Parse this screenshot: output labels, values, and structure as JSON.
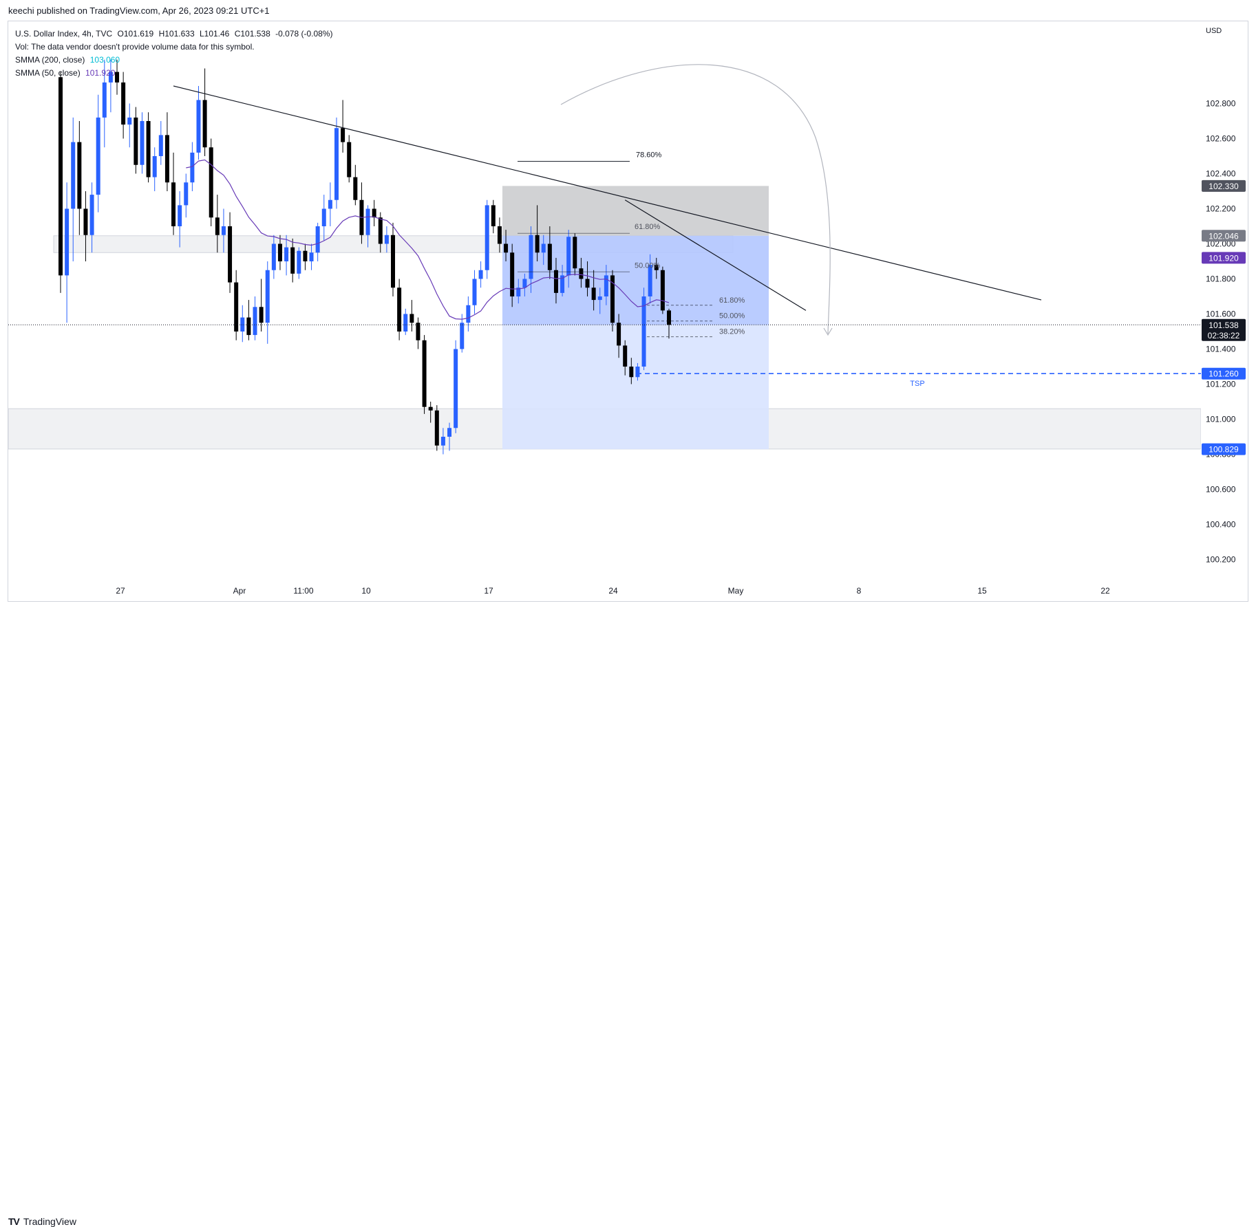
{
  "header": {
    "published_by": "keechi published on TradingView.com, Apr 26, 2023 09:21 UTC+1"
  },
  "legend": {
    "symbol_line": "U.S. Dollar Index, 4h, TVC",
    "ohlc": {
      "open": "O101.619",
      "high": "H101.633",
      "low": "L101.46",
      "close": "C101.538",
      "change": "-0.078 (-0.08%)"
    },
    "volume_note": "Vol: The data vendor doesn't provide volume data for this symbol.",
    "indicators": [
      {
        "label": "SMMA (200, close)",
        "value": "103.060",
        "color": "#00bcd4"
      },
      {
        "label": "SMMA (50, close)",
        "value": "101.920",
        "color": "#673ab7"
      }
    ]
  },
  "footer": {
    "brand": "TradingView"
  },
  "colors": {
    "up": "#2962ff",
    "down": "#000000",
    "smma50": "#673ab7",
    "fib_zone_fill": "#b2c6ff",
    "fib_zone_light": "#d8e3ff",
    "grey_zone": "#c9cacd",
    "support_band": "#f0f1f3",
    "tsp_line": "#2962ff"
  },
  "chart_data": {
    "type": "candlestick",
    "timeframe": "4h",
    "y_axis": {
      "unit": "USD",
      "ticks": [
        "102.800",
        "102.600",
        "102.400",
        "102.200",
        "102.000",
        "101.800",
        "101.600",
        "101.400",
        "101.200",
        "101.000",
        "100.800",
        "100.600",
        "100.400",
        "100.200"
      ],
      "range": [
        100.13,
        102.9
      ]
    },
    "x_axis": {
      "ticks": [
        "27",
        "Apr",
        "11:00",
        "10",
        "17",
        "24",
        "May",
        "8",
        "15",
        "22"
      ]
    },
    "price_labels": [
      {
        "value": 102.33,
        "text": "102.330",
        "style": "dark-grey"
      },
      {
        "value": 102.046,
        "text": "102.046",
        "style": "grey"
      },
      {
        "value": 101.92,
        "text": "101.920",
        "style": "purple"
      },
      {
        "value": 101.538,
        "text": "101.538",
        "sub": "02:38:22",
        "style": "black"
      },
      {
        "value": 101.26,
        "text": "101.260",
        "style": "blue"
      },
      {
        "value": 100.829,
        "text": "100.829",
        "style": "blue"
      }
    ],
    "current_price": 101.538,
    "countdown": "02:38:22",
    "tsp": {
      "value": 101.26,
      "label": "TSP"
    },
    "fib_large": [
      {
        "label": "78.60%",
        "value": 102.47
      },
      {
        "label": "61.80%",
        "value": 102.06
      },
      {
        "label": "50.00%",
        "value": 101.84
      }
    ],
    "fib_small": [
      {
        "label": "61.80%",
        "value": 101.65
      },
      {
        "label": "50.00%",
        "value": 101.56
      },
      {
        "label": "38.20%",
        "value": 101.47
      }
    ],
    "zones": [
      {
        "name": "resistance-box",
        "top": 102.33,
        "bottom": 102.046
      },
      {
        "name": "fib-zone",
        "top": 102.046,
        "bottom": 100.829
      },
      {
        "name": "upper-band",
        "top": 102.046,
        "bottom": 101.95
      },
      {
        "name": "support-band",
        "top": 101.06,
        "bottom": 100.83
      }
    ],
    "trendlines": [
      {
        "name": "long-downtrend",
        "from": {
          "bar": 18,
          "value": 102.9
        },
        "to": {
          "x_label": "8",
          "value": 101.68
        }
      },
      {
        "name": "short-downtrend",
        "from": {
          "bar": 90,
          "value": 102.25
        },
        "to": {
          "x_label": "May",
          "value": 101.62
        }
      }
    ],
    "candles_ohlc": [
      [
        102.95,
        102.98,
        101.72,
        101.82
      ],
      [
        101.82,
        102.35,
        101.55,
        102.2
      ],
      [
        102.2,
        102.72,
        101.9,
        102.58
      ],
      [
        102.58,
        102.7,
        102.05,
        102.2
      ],
      [
        102.2,
        102.3,
        101.9,
        102.05
      ],
      [
        102.05,
        102.35,
        101.95,
        102.28
      ],
      [
        102.28,
        102.85,
        102.18,
        102.72
      ],
      [
        102.72,
        103.05,
        102.55,
        102.92
      ],
      [
        102.92,
        103.05,
        102.75,
        102.98
      ],
      [
        102.98,
        103.05,
        102.85,
        102.92
      ],
      [
        102.92,
        102.98,
        102.6,
        102.68
      ],
      [
        102.68,
        102.8,
        102.55,
        102.72
      ],
      [
        102.72,
        102.78,
        102.4,
        102.45
      ],
      [
        102.45,
        102.75,
        102.4,
        102.7
      ],
      [
        102.7,
        102.75,
        102.35,
        102.38
      ],
      [
        102.38,
        102.55,
        102.3,
        102.5
      ],
      [
        102.5,
        102.7,
        102.45,
        102.62
      ],
      [
        102.62,
        102.75,
        102.3,
        102.35
      ],
      [
        102.35,
        102.52,
        102.05,
        102.1
      ],
      [
        102.1,
        102.3,
        101.98,
        102.22
      ],
      [
        102.22,
        102.4,
        102.15,
        102.35
      ],
      [
        102.35,
        102.58,
        102.3,
        102.52
      ],
      [
        102.52,
        102.9,
        102.48,
        102.82
      ],
      [
        102.82,
        103.0,
        102.5,
        102.55
      ],
      [
        102.55,
        102.6,
        102.1,
        102.15
      ],
      [
        102.15,
        102.28,
        101.95,
        102.05
      ],
      [
        102.05,
        102.2,
        101.95,
        102.1
      ],
      [
        102.1,
        102.18,
        101.72,
        101.78
      ],
      [
        101.78,
        101.85,
        101.45,
        101.5
      ],
      [
        101.5,
        101.65,
        101.44,
        101.58
      ],
      [
        101.58,
        101.68,
        101.45,
        101.48
      ],
      [
        101.48,
        101.7,
        101.45,
        101.64
      ],
      [
        101.64,
        101.8,
        101.5,
        101.55
      ],
      [
        101.55,
        101.9,
        101.43,
        101.85
      ],
      [
        101.85,
        102.05,
        101.8,
        102.0
      ],
      [
        102.0,
        102.05,
        101.85,
        101.9
      ],
      [
        101.9,
        102.05,
        101.82,
        101.98
      ],
      [
        101.98,
        102.03,
        101.78,
        101.83
      ],
      [
        101.83,
        101.98,
        101.8,
        101.96
      ],
      [
        101.96,
        102.0,
        101.85,
        101.9
      ],
      [
        101.9,
        102.0,
        101.85,
        101.95
      ],
      [
        101.95,
        102.12,
        101.9,
        102.1
      ],
      [
        102.1,
        102.28,
        102.02,
        102.2
      ],
      [
        102.2,
        102.35,
        102.1,
        102.25
      ],
      [
        102.25,
        102.72,
        102.2,
        102.66
      ],
      [
        102.66,
        102.82,
        102.52,
        102.58
      ],
      [
        102.58,
        102.62,
        102.35,
        102.38
      ],
      [
        102.38,
        102.45,
        102.22,
        102.25
      ],
      [
        102.25,
        102.35,
        102.0,
        102.05
      ],
      [
        102.05,
        102.22,
        101.98,
        102.2
      ],
      [
        102.2,
        102.25,
        102.1,
        102.15
      ],
      [
        102.15,
        102.18,
        101.95,
        102.0
      ],
      [
        102.0,
        102.1,
        101.95,
        102.05
      ],
      [
        102.05,
        102.12,
        101.7,
        101.75
      ],
      [
        101.75,
        101.8,
        101.45,
        101.5
      ],
      [
        101.5,
        101.63,
        101.48,
        101.6
      ],
      [
        101.6,
        101.68,
        101.5,
        101.55
      ],
      [
        101.55,
        101.58,
        101.4,
        101.45
      ],
      [
        101.45,
        101.48,
        101.03,
        101.07
      ],
      [
        101.07,
        101.1,
        100.98,
        101.05
      ],
      [
        101.05,
        101.08,
        100.82,
        100.85
      ],
      [
        100.85,
        100.95,
        100.8,
        100.9
      ],
      [
        100.9,
        100.98,
        100.82,
        100.95
      ],
      [
        100.95,
        101.45,
        100.92,
        101.4
      ],
      [
        101.4,
        101.6,
        101.38,
        101.55
      ],
      [
        101.55,
        101.7,
        101.5,
        101.65
      ],
      [
        101.65,
        101.85,
        101.6,
        101.8
      ],
      [
        101.8,
        101.9,
        101.75,
        101.85
      ],
      [
        101.85,
        102.25,
        101.8,
        102.22
      ],
      [
        102.22,
        102.25,
        102.06,
        102.1
      ],
      [
        102.1,
        102.15,
        101.95,
        102.0
      ],
      [
        102.0,
        102.08,
        101.9,
        101.95
      ],
      [
        101.95,
        102.0,
        101.64,
        101.7
      ],
      [
        101.7,
        101.8,
        101.66,
        101.75
      ],
      [
        101.75,
        101.83,
        101.7,
        101.8
      ],
      [
        101.8,
        102.1,
        101.72,
        102.05
      ],
      [
        102.05,
        102.22,
        101.9,
        101.95
      ],
      [
        101.95,
        102.05,
        101.88,
        102.0
      ],
      [
        102.0,
        102.1,
        101.8,
        101.85
      ],
      [
        101.85,
        101.92,
        101.66,
        101.72
      ],
      [
        101.72,
        101.88,
        101.7,
        101.82
      ],
      [
        101.82,
        102.08,
        101.75,
        102.04
      ],
      [
        102.04,
        102.06,
        101.82,
        101.86
      ],
      [
        101.86,
        101.92,
        101.75,
        101.8
      ],
      [
        101.8,
        101.9,
        101.7,
        101.75
      ],
      [
        101.75,
        101.85,
        101.62,
        101.68
      ],
      [
        101.68,
        101.75,
        101.6,
        101.7
      ],
      [
        101.7,
        101.88,
        101.65,
        101.82
      ],
      [
        101.82,
        101.85,
        101.5,
        101.55
      ],
      [
        101.55,
        101.6,
        101.35,
        101.42
      ],
      [
        101.42,
        101.45,
        101.25,
        101.3
      ],
      [
        101.3,
        101.35,
        101.2,
        101.24
      ],
      [
        101.24,
        101.32,
        101.22,
        101.3
      ],
      [
        101.3,
        101.75,
        101.28,
        101.7
      ],
      [
        101.7,
        101.94,
        101.66,
        101.88
      ],
      [
        101.88,
        101.92,
        101.8,
        101.85
      ],
      [
        101.85,
        101.87,
        101.6,
        101.62
      ],
      [
        101.62,
        101.63,
        101.46,
        101.538
      ]
    ]
  }
}
